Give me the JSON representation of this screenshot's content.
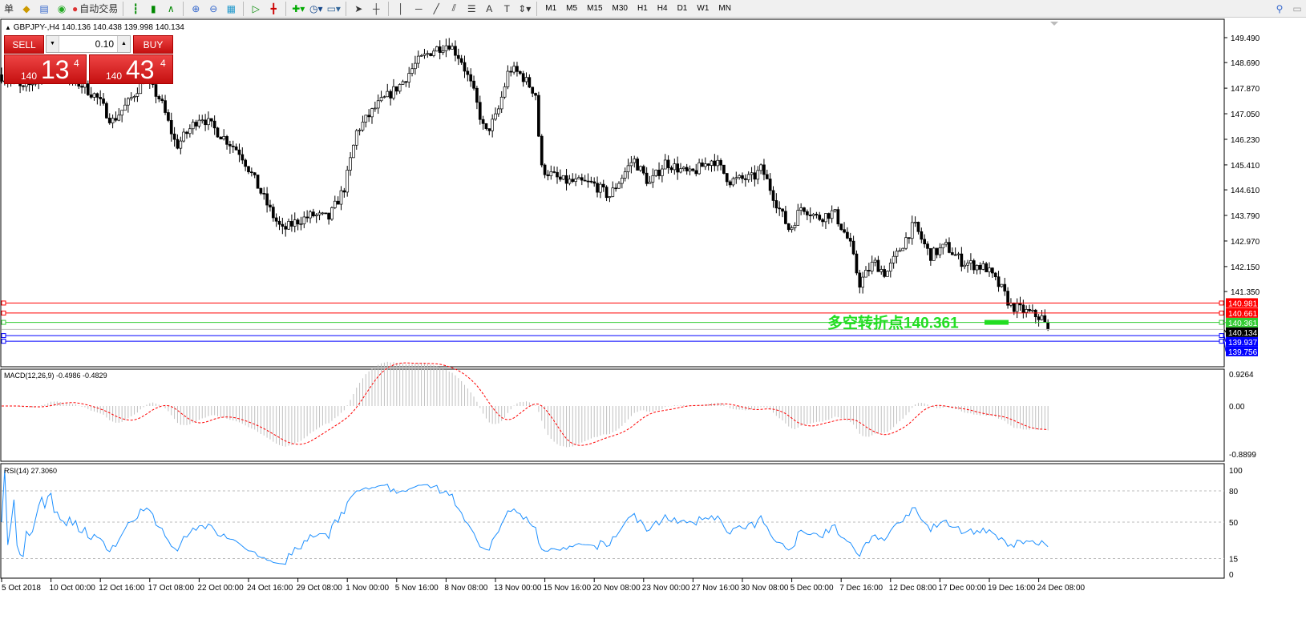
{
  "toolbar": {
    "menu_fragment": "单",
    "auto_trade": "自动交易",
    "timeframes": [
      "M1",
      "M5",
      "M15",
      "M30",
      "H1",
      "H4",
      "D1",
      "W1",
      "MN"
    ],
    "icons": [
      "gold-bars-icon",
      "navigator-icon",
      "signal-icon",
      "auto-trading-icon",
      "bar-chart-icon",
      "candlestick-icon",
      "line-chart-icon",
      "zoom-in-icon",
      "zoom-out-icon",
      "tile-windows-icon",
      "auto-scroll-icon",
      "chart-shift-icon",
      "indicators-icon",
      "periods-icon",
      "templates-icon",
      "cursor-icon",
      "crosshair-icon",
      "vertical-line-icon",
      "horizontal-line-icon",
      "trendline-icon",
      "fibonacci-icon",
      "fibo-fan-icon",
      "text-icon",
      "text-label-icon",
      "arrows-icon",
      "search-icon"
    ]
  },
  "chart": {
    "symbol_line": "GBPJPY-,H4  140.136 140.438 139.998 140.134",
    "trade_panel": {
      "sell": "SELL",
      "buy": "BUY",
      "lot": "0.10",
      "sell_prefix": "140",
      "sell_big": "13",
      "sell_sup": "4",
      "buy_prefix": "140",
      "buy_big": "43",
      "buy_sup": "4"
    },
    "price_ticks": [
      "149.490",
      "148.690",
      "147.870",
      "147.050",
      "146.230",
      "145.410",
      "144.610",
      "143.790",
      "142.970",
      "142.150",
      "141.350"
    ],
    "levels": [
      {
        "label": "140.981",
        "color": "#ff0000"
      },
      {
        "label": "140.661",
        "color": "#ff0000"
      },
      {
        "label": "140.361",
        "color": "#33cc33"
      },
      {
        "label": "140.134",
        "color": "#000000"
      },
      {
        "label": "139.937",
        "color": "#0000ff"
      },
      {
        "label": "139.756",
        "color": "#0000ff"
      }
    ],
    "annotation": "多空转折点140.361",
    "annotation_color": "#22dd22",
    "macd": {
      "title": "MACD(12,26,9) -0.4986 -0.4829",
      "ticks": [
        "0.9264",
        "0.00",
        "-0.8899"
      ],
      "signal_color": "#ff0000",
      "hist_color": "#c0c0c0"
    },
    "rsi": {
      "title": "RSI(14) 27.3060",
      "ticks": [
        "100",
        "80",
        "50",
        "15",
        "0"
      ],
      "color": "#1e90ff"
    },
    "time_labels": [
      "5 Oct 2018",
      "10 Oct 00:00",
      "12 Oct 16:00",
      "17 Oct 08:00",
      "22 Oct 00:00",
      "24 Oct 16:00",
      "29 Oct 08:00",
      "1 Nov 00:00",
      "5 Nov 16:00",
      "8 Nov 08:00",
      "13 Nov 00:00",
      "15 Nov 16:00",
      "20 Nov 08:00",
      "23 Nov 00:00",
      "27 Nov 16:00",
      "30 Nov 08:00",
      "5 Dec 00:00",
      "7 Dec 16:00",
      "12 Dec 08:00",
      "17 Dec 00:00",
      "19 Dec 16:00",
      "24 Dec 08:00"
    ]
  }
}
